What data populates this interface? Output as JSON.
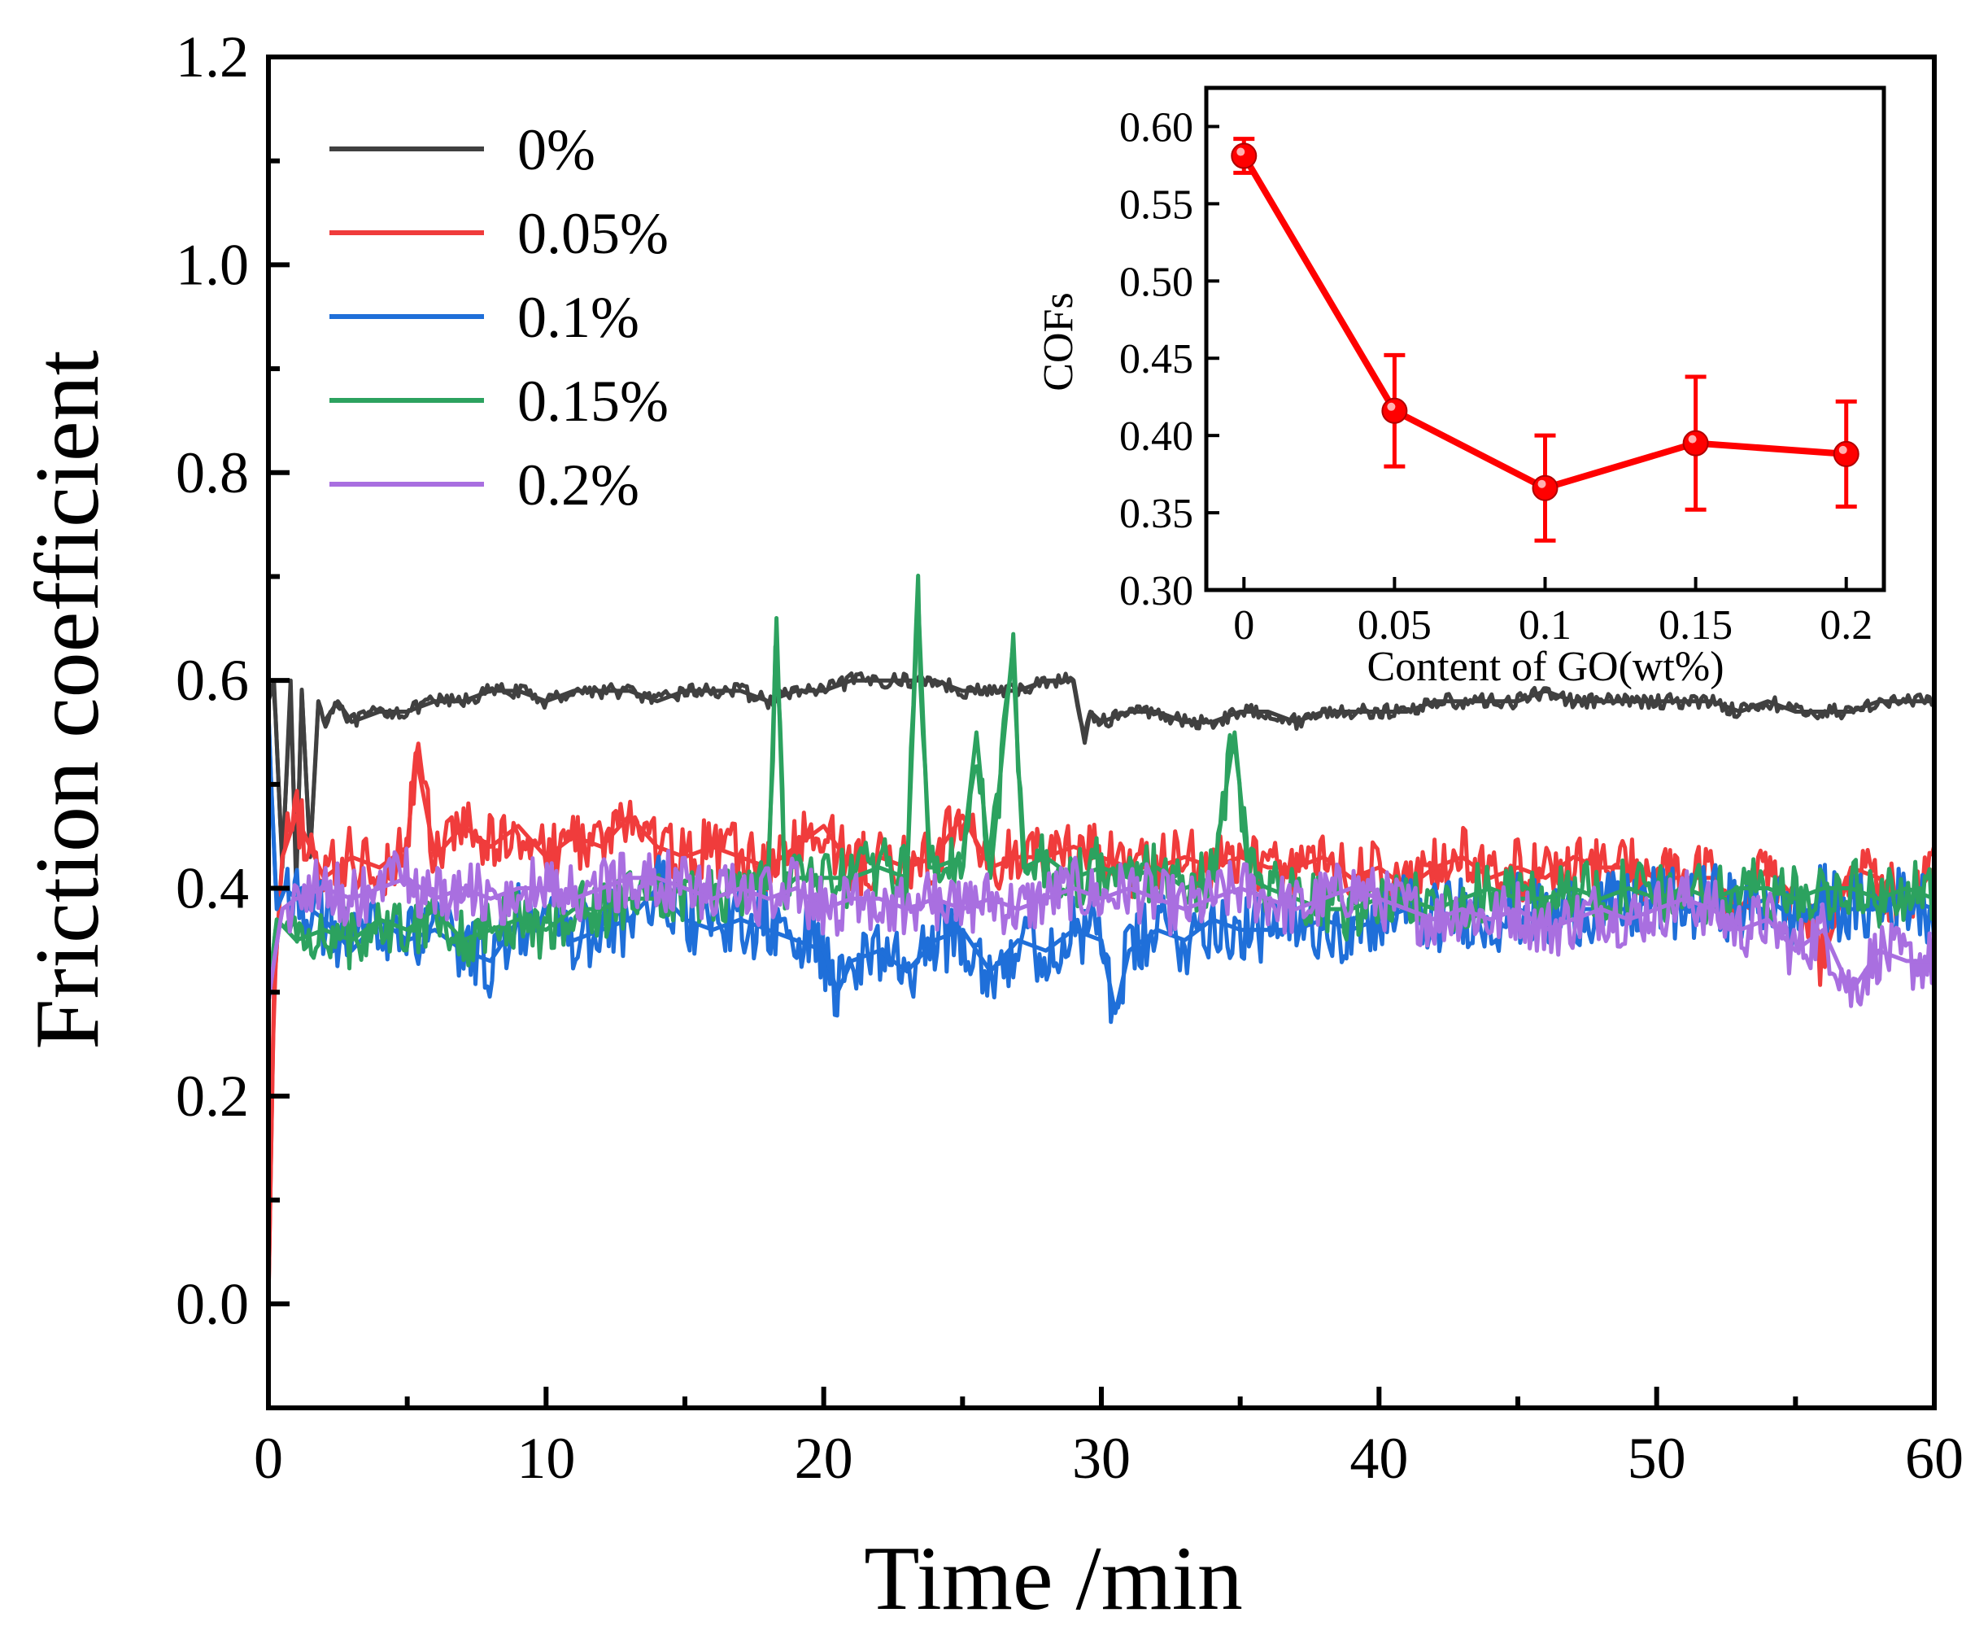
{
  "chart_data": [
    {
      "type": "line",
      "title": "",
      "xlabel": "Time /min",
      "ylabel": "Friction coefficient",
      "xlim": [
        0,
        60
      ],
      "ylim": [
        -0.1,
        1.2
      ],
      "xticks": [
        "0",
        "10",
        "20",
        "30",
        "40",
        "50",
        "60"
      ],
      "yticks": [
        "0.0",
        "0.2",
        "0.4",
        "0.6",
        "0.8",
        "1.0",
        "1.2"
      ],
      "grid": false,
      "legend_position": "top-left",
      "series": [
        {
          "name": "0%",
          "color": "#404040",
          "x": [
            0,
            0.2,
            0.5,
            0.8,
            1.0,
            1.2,
            1.5,
            1.8,
            2.0,
            2.5,
            3,
            4,
            5,
            6,
            7,
            8,
            9,
            10,
            11,
            12,
            13,
            14,
            15,
            16,
            17,
            18,
            19,
            20,
            21,
            22,
            23,
            24,
            25,
            26,
            27,
            28,
            29,
            29.4,
            29.6,
            30,
            31,
            32,
            33,
            34,
            35,
            36,
            37,
            38,
            39,
            40,
            41,
            42,
            43,
            44,
            45,
            46,
            47,
            48,
            49,
            50,
            51,
            52,
            53,
            54,
            55,
            56,
            57,
            58,
            59,
            60
          ],
          "y": [
            0.58,
            0.6,
            0.42,
            0.6,
            0.4,
            0.59,
            0.43,
            0.58,
            0.56,
            0.58,
            0.56,
            0.57,
            0.57,
            0.58,
            0.58,
            0.59,
            0.59,
            0.58,
            0.59,
            0.59,
            0.59,
            0.58,
            0.59,
            0.59,
            0.59,
            0.58,
            0.59,
            0.59,
            0.6,
            0.6,
            0.6,
            0.6,
            0.59,
            0.59,
            0.59,
            0.6,
            0.6,
            0.54,
            0.57,
            0.56,
            0.57,
            0.57,
            0.56,
            0.56,
            0.57,
            0.57,
            0.56,
            0.57,
            0.57,
            0.57,
            0.57,
            0.58,
            0.58,
            0.58,
            0.58,
            0.59,
            0.58,
            0.58,
            0.58,
            0.58,
            0.58,
            0.58,
            0.57,
            0.58,
            0.57,
            0.57,
            0.57,
            0.58,
            0.58,
            0.58
          ]
        },
        {
          "name": "0.05%",
          "color": "#f03c3c",
          "x": [
            0,
            0.2,
            0.5,
            1,
            2,
            3,
            4,
            5,
            5.3,
            6,
            7,
            8,
            9,
            10,
            11,
            12,
            13,
            14,
            15,
            16,
            17,
            18,
            19,
            20,
            21,
            22,
            23,
            24,
            25,
            26,
            27,
            28,
            29,
            30,
            31,
            32,
            33,
            34,
            35,
            36,
            37,
            38,
            39,
            40,
            41,
            42,
            43,
            44,
            45,
            46,
            47,
            48,
            49,
            50,
            51,
            52,
            53,
            54,
            55,
            56,
            57,
            58,
            59,
            60
          ],
          "y": [
            0.0,
            0.3,
            0.43,
            0.47,
            0.41,
            0.43,
            0.42,
            0.44,
            0.53,
            0.43,
            0.46,
            0.44,
            0.46,
            0.43,
            0.45,
            0.44,
            0.47,
            0.44,
            0.43,
            0.44,
            0.43,
            0.42,
            0.44,
            0.46,
            0.42,
            0.43,
            0.42,
            0.43,
            0.47,
            0.42,
            0.43,
            0.43,
            0.44,
            0.43,
            0.42,
            0.42,
            0.43,
            0.42,
            0.43,
            0.42,
            0.42,
            0.43,
            0.41,
            0.42,
            0.4,
            0.42,
            0.43,
            0.41,
            0.42,
            0.41,
            0.43,
            0.42,
            0.42,
            0.41,
            0.41,
            0.41,
            0.38,
            0.42,
            0.39,
            0.33,
            0.42,
            0.41,
            0.38,
            0.42
          ]
        },
        {
          "name": "0.1%",
          "color": "#1f6fd9",
          "x": [
            0,
            0.1,
            0.3,
            0.6,
            1,
            2,
            3,
            4,
            5,
            6,
            7,
            8,
            9,
            10,
            11,
            12,
            13,
            14,
            15,
            16,
            17,
            18,
            19,
            20,
            20.5,
            21,
            22,
            23,
            24,
            25,
            26,
            27,
            28,
            29,
            30,
            30.5,
            31,
            32,
            33,
            34,
            35,
            36,
            37,
            38,
            39,
            40,
            41,
            42,
            43,
            44,
            45,
            46,
            47,
            48,
            49,
            50,
            51,
            52,
            53,
            54,
            55,
            56,
            57,
            58,
            59,
            60
          ],
          "y": [
            0.57,
            0.5,
            0.38,
            0.4,
            0.39,
            0.37,
            0.34,
            0.37,
            0.35,
            0.36,
            0.34,
            0.33,
            0.37,
            0.37,
            0.35,
            0.36,
            0.37,
            0.4,
            0.37,
            0.36,
            0.37,
            0.36,
            0.35,
            0.34,
            0.3,
            0.33,
            0.34,
            0.32,
            0.35,
            0.36,
            0.32,
            0.35,
            0.34,
            0.36,
            0.35,
            0.28,
            0.34,
            0.36,
            0.35,
            0.37,
            0.36,
            0.36,
            0.36,
            0.37,
            0.36,
            0.37,
            0.38,
            0.37,
            0.38,
            0.37,
            0.38,
            0.37,
            0.38,
            0.38,
            0.38,
            0.39,
            0.38,
            0.39,
            0.38,
            0.39,
            0.37,
            0.39,
            0.38,
            0.38,
            0.39,
            0.38
          ]
        },
        {
          "name": "0.15%",
          "color": "#2ca25f",
          "x": [
            0,
            0.3,
            1,
            2,
            3,
            4,
            5,
            6,
            7,
            8,
            9,
            10,
            11,
            12,
            13,
            14,
            15,
            16,
            17,
            18,
            18.3,
            18.6,
            19,
            20,
            21,
            22,
            23,
            23.4,
            23.8,
            24,
            25,
            25.5,
            26,
            26.8,
            27.2,
            28,
            29,
            30,
            31,
            32,
            33,
            34,
            34.8,
            35.3,
            36,
            37,
            38,
            39,
            40,
            41,
            42,
            43,
            44,
            45,
            46,
            47,
            48,
            49,
            50,
            51,
            52,
            53,
            54,
            55,
            56,
            57,
            58,
            59,
            60
          ],
          "y": [
            0.3,
            0.37,
            0.35,
            0.36,
            0.35,
            0.37,
            0.36,
            0.38,
            0.35,
            0.36,
            0.37,
            0.36,
            0.38,
            0.38,
            0.39,
            0.39,
            0.4,
            0.39,
            0.4,
            0.4,
            0.66,
            0.4,
            0.41,
            0.41,
            0.41,
            0.42,
            0.41,
            0.68,
            0.42,
            0.42,
            0.43,
            0.55,
            0.41,
            0.63,
            0.42,
            0.43,
            0.41,
            0.42,
            0.41,
            0.42,
            0.4,
            0.41,
            0.55,
            0.41,
            0.4,
            0.39,
            0.38,
            0.38,
            0.39,
            0.39,
            0.38,
            0.39,
            0.4,
            0.39,
            0.39,
            0.4,
            0.39,
            0.4,
            0.39,
            0.4,
            0.39,
            0.4,
            0.4,
            0.39,
            0.4,
            0.4,
            0.39,
            0.4,
            0.39
          ]
        },
        {
          "name": "0.2%",
          "color": "#a96fe0",
          "x": [
            0,
            0.2,
            0.5,
            1,
            2,
            3,
            4,
            5,
            6,
            7,
            8,
            9,
            10,
            11,
            12,
            13,
            14,
            15,
            16,
            17,
            18,
            19,
            20,
            21,
            22,
            23,
            24,
            25,
            26,
            27,
            28,
            29,
            30,
            31,
            32,
            33,
            34,
            35,
            36,
            37,
            38,
            39,
            40,
            41,
            42,
            43,
            44,
            45,
            46,
            47,
            48,
            49,
            50,
            51,
            52,
            53,
            54,
            55,
            56,
            57,
            58,
            59,
            60
          ],
          "y": [
            0.29,
            0.33,
            0.38,
            0.39,
            0.4,
            0.39,
            0.4,
            0.41,
            0.39,
            0.4,
            0.39,
            0.4,
            0.4,
            0.39,
            0.4,
            0.41,
            0.41,
            0.4,
            0.39,
            0.4,
            0.39,
            0.4,
            0.38,
            0.39,
            0.39,
            0.38,
            0.39,
            0.38,
            0.39,
            0.38,
            0.39,
            0.4,
            0.39,
            0.4,
            0.39,
            0.38,
            0.39,
            0.4,
            0.39,
            0.38,
            0.39,
            0.4,
            0.39,
            0.38,
            0.37,
            0.38,
            0.37,
            0.38,
            0.36,
            0.37,
            0.38,
            0.37,
            0.38,
            0.39,
            0.38,
            0.36,
            0.37,
            0.34,
            0.36,
            0.3,
            0.34,
            0.33,
            0.33
          ]
        }
      ]
    },
    {
      "type": "line",
      "title": "",
      "xlabel": "Content of GO(wt%)",
      "ylabel": "COFs",
      "categories": [
        "0",
        "0.05",
        "0.1",
        "0.15",
        "0.2"
      ],
      "xlim": [
        -0.0125,
        0.2125
      ],
      "ylim": [
        0.3,
        0.625
      ],
      "yticks": [
        "0.30",
        "0.35",
        "0.40",
        "0.45",
        "0.50",
        "0.55",
        "0.60"
      ],
      "grid": false,
      "color": "#ff0000",
      "series": [
        {
          "x": [
            0,
            0.05,
            0.1,
            0.15,
            0.2
          ],
          "values": [
            0.581,
            0.416,
            0.366,
            0.395,
            0.388
          ],
          "error": [
            0.011,
            0.036,
            0.034,
            0.043,
            0.034
          ]
        }
      ]
    }
  ]
}
